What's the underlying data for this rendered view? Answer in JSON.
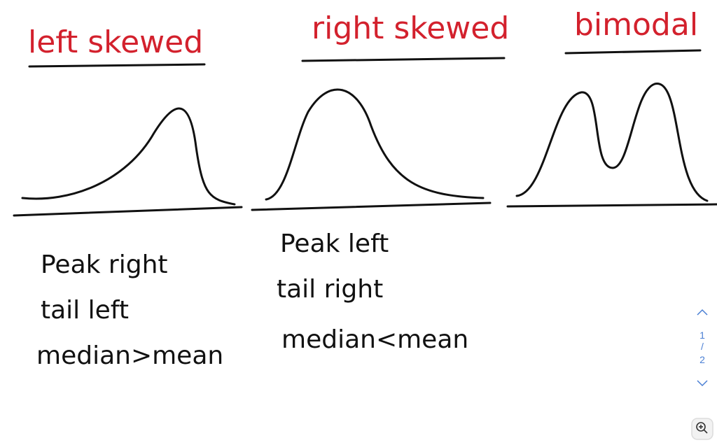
{
  "columns": [
    {
      "title": "left skewed",
      "notes": [
        "Peak right",
        "tail left",
        "median>mean"
      ]
    },
    {
      "title": "right skewed",
      "notes": [
        "Peak left",
        "tail right",
        "median<mean"
      ]
    },
    {
      "title": "bimodal"
    }
  ],
  "pager": {
    "current": 1,
    "separator": "/",
    "total": 2
  }
}
